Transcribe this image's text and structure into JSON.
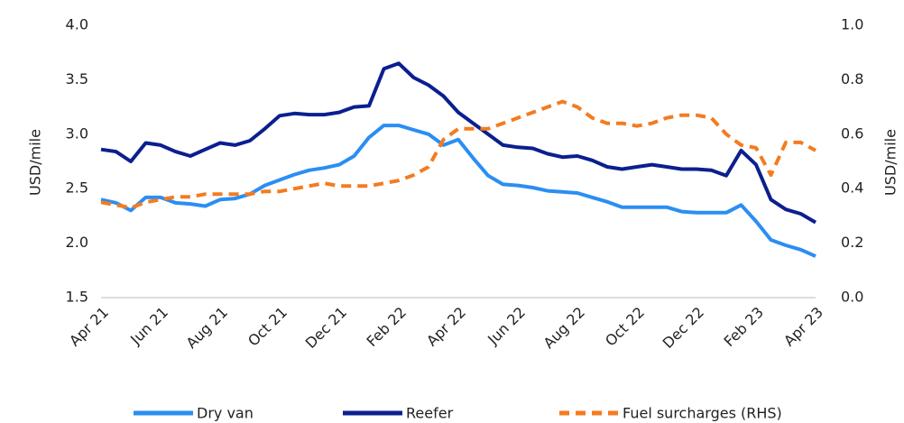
{
  "chart_data": {
    "type": "line",
    "y_label": "USD/mile",
    "y2_label": "USD/mile",
    "x": [
      0,
      0.5,
      1,
      1.5,
      2,
      2.5,
      3,
      3.5,
      4,
      4.5,
      5,
      5.5,
      6,
      6.5,
      7,
      7.5,
      8,
      8.5,
      9,
      9.5,
      10,
      10.5,
      11,
      11.5,
      12,
      12.5,
      13,
      13.5,
      14,
      14.5,
      15,
      15.5,
      16,
      16.5,
      17,
      17.5,
      18,
      18.5,
      19,
      19.5,
      20,
      20.5,
      21,
      21.5,
      22,
      22.5,
      23,
      23.5,
      24
    ],
    "xlim": [
      0,
      24
    ],
    "xticks": [
      {
        "value": 0,
        "label": "Apr 21"
      },
      {
        "value": 2,
        "label": "Jun 21"
      },
      {
        "value": 4,
        "label": "Aug 21"
      },
      {
        "value": 6,
        "label": "Oct 21"
      },
      {
        "value": 8,
        "label": "Dec 21"
      },
      {
        "value": 10,
        "label": "Feb 22"
      },
      {
        "value": 12,
        "label": "Apr 22"
      },
      {
        "value": 14,
        "label": "Jun 22"
      },
      {
        "value": 16,
        "label": "Aug 22"
      },
      {
        "value": 18,
        "label": "Oct 22"
      },
      {
        "value": 20,
        "label": "Dec 22"
      },
      {
        "value": 22,
        "label": "Feb 23"
      },
      {
        "value": 24,
        "label": "Apr 23"
      }
    ],
    "ylim": [
      1.5,
      4.0
    ],
    "yticks": [
      1.5,
      {
        "value": 2.0,
        "label": "2.0"
      },
      2.5,
      {
        "value": 3.0,
        "label": "3.0"
      },
      3.5,
      {
        "value": 4.0,
        "label": "4.0"
      }
    ],
    "y2lim": [
      0.0,
      1.0
    ],
    "y2ticks": [
      {
        "value": 0,
        "label": "0.0"
      },
      0.2,
      0.4,
      0.6,
      0.8,
      {
        "value": 1,
        "label": "1.0"
      }
    ],
    "series": [
      {
        "name": "Dry van",
        "color": "#2b8ef2",
        "values": [
          2.4,
          2.37,
          2.3,
          2.42,
          2.42,
          2.37,
          2.36,
          2.34,
          2.4,
          2.41,
          2.45,
          2.53,
          2.58,
          2.63,
          2.67,
          2.69,
          2.72,
          2.8,
          2.97,
          3.08,
          3.08,
          3.04,
          3.0,
          2.9,
          2.95,
          2.78,
          2.62,
          2.54,
          2.53,
          2.51,
          2.48,
          2.47,
          2.46,
          2.42,
          2.38,
          2.33,
          2.33,
          2.33,
          2.33,
          2.29,
          2.28,
          2.28,
          2.28,
          2.35,
          2.2,
          2.03,
          1.98,
          1.94,
          1.88
        ]
      },
      {
        "name": "Reefer",
        "color": "#0b1f8f",
        "values": [
          2.86,
          2.84,
          2.75,
          2.92,
          2.9,
          2.84,
          2.8,
          2.86,
          2.92,
          2.9,
          2.94,
          3.05,
          3.17,
          3.19,
          3.18,
          3.18,
          3.2,
          3.25,
          3.26,
          3.6,
          3.65,
          3.52,
          3.45,
          3.35,
          3.2,
          3.1,
          3.0,
          2.9,
          2.88,
          2.87,
          2.82,
          2.79,
          2.8,
          2.76,
          2.7,
          2.68,
          2.7,
          2.72,
          2.7,
          2.68,
          2.68,
          2.67,
          2.62,
          2.85,
          2.72,
          2.4,
          2.31,
          2.27,
          2.19
        ]
      },
      {
        "name": "Fuel surcharges (RHS)",
        "color": "#f47b20",
        "axis": "y2",
        "dashed": true,
        "values": [
          0.35,
          0.34,
          0.33,
          0.35,
          0.36,
          0.37,
          0.37,
          0.38,
          0.38,
          0.38,
          0.38,
          0.39,
          0.39,
          0.4,
          0.41,
          0.42,
          0.41,
          0.41,
          0.41,
          0.42,
          0.43,
          0.45,
          0.48,
          0.58,
          0.62,
          0.62,
          0.62,
          0.64,
          0.66,
          0.68,
          0.7,
          0.72,
          0.7,
          0.66,
          0.64,
          0.64,
          0.63,
          0.64,
          0.66,
          0.67,
          0.67,
          0.66,
          0.6,
          0.56,
          0.55,
          0.45,
          0.57,
          0.57,
          0.54
        ]
      }
    ]
  }
}
